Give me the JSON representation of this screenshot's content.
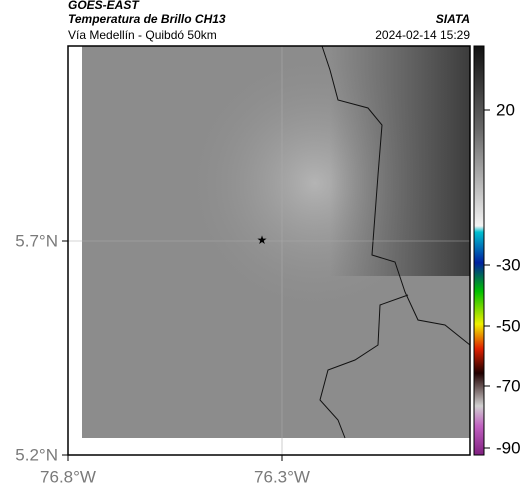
{
  "header": {
    "source": "GOES-EAST",
    "title": "Temperatura de Brillo CH13",
    "subtitle": "Vía Medellín - Quibdó 50km",
    "credit": "SIATA",
    "timestamp": "2024-02-14 15:29"
  },
  "map": {
    "lat_labels": [
      "5.7°N",
      "5.2°N"
    ],
    "lon_labels": [
      "76.8°W",
      "76.3°W"
    ]
  },
  "colorbar": {
    "tick_labels": [
      "20",
      "-30",
      "-50",
      "-70",
      "-90"
    ]
  }
}
